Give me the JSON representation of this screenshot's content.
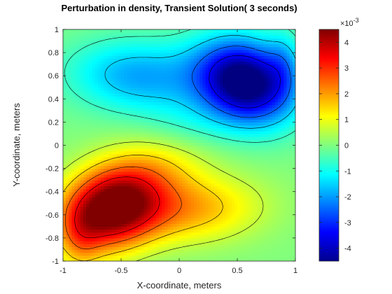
{
  "chart_data": {
    "type": "heatmap",
    "title": "Perturbation in density, Transient Solution( 3 seconds)",
    "xlabel": "X-coordinate, meters",
    "ylabel": "Y-coordinate, meters",
    "xlim": [
      -1,
      1
    ],
    "ylim": [
      -1,
      1
    ],
    "x_ticks": [
      "-1",
      "-0.5",
      "0",
      "0.5",
      "1"
    ],
    "x_tick_values": [
      -1,
      -0.5,
      0,
      0.5,
      1
    ],
    "y_ticks": [
      "-1",
      "-0.8",
      "-0.6",
      "-0.4",
      "-0.2",
      "0",
      "0.2",
      "0.4",
      "0.6",
      "0.8",
      "1"
    ],
    "y_tick_values": [
      -1,
      -0.8,
      -0.6,
      -0.4,
      -0.2,
      0,
      0.2,
      0.4,
      0.6,
      0.8,
      1
    ],
    "colorbar": {
      "range": [
        -4.5,
        4.5
      ],
      "ticks": [
        "-4",
        "-3",
        "-2",
        "-1",
        "0",
        "1",
        "2",
        "3",
        "4"
      ],
      "tick_values": [
        -4,
        -3,
        -2,
        -1,
        0,
        1,
        2,
        3,
        4
      ],
      "multiplier_base": "×10",
      "multiplier_exponent": "-3",
      "colormap": "jet"
    },
    "extrema": [
      {
        "kind": "maximum",
        "x": -0.6,
        "y": -0.55,
        "value": 4.5
      },
      {
        "kind": "minimum",
        "x": 0.55,
        "y": 0.55,
        "value": -4.5
      }
    ],
    "contour_lines": true,
    "grid": false
  }
}
